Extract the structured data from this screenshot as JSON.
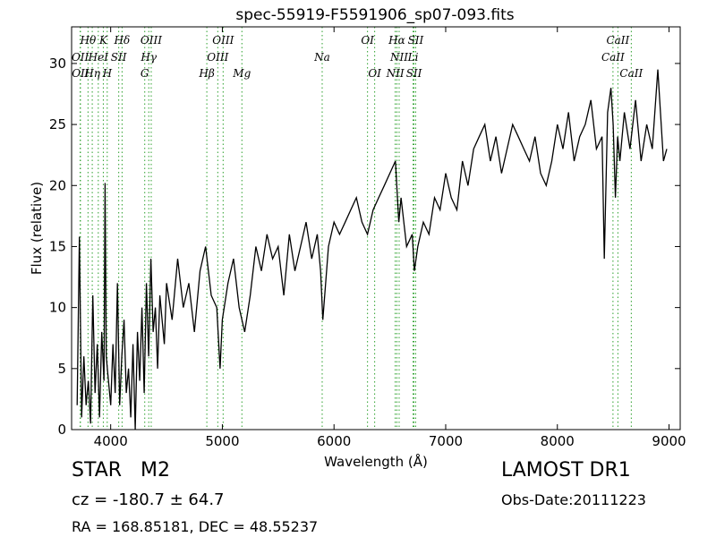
{
  "chart_data": {
    "type": "line",
    "title": "spec-55919-F5591906_sp07-093.fits",
    "xlabel": "Wavelength (Å)",
    "ylabel": "Flux (relative)",
    "xlim": [
      3650,
      9100
    ],
    "ylim": [
      0,
      33
    ],
    "xticks": [
      4000,
      5000,
      6000,
      7000,
      8000,
      9000
    ],
    "yticks": [
      0,
      5,
      10,
      15,
      20,
      25,
      30
    ],
    "grid": false,
    "line_color": "#000000",
    "marker_color": "#2ca02c",
    "series": [
      {
        "x": [
          3700,
          3720,
          3740,
          3760,
          3780,
          3800,
          3820,
          3840,
          3860,
          3880,
          3900,
          3920,
          3940,
          3950,
          3960,
          3980,
          4000,
          4020,
          4040,
          4060,
          4080,
          4100,
          4120,
          4140,
          4160,
          4180,
          4200,
          4220,
          4240,
          4260,
          4280,
          4300,
          4320,
          4340,
          4360,
          4380,
          4400,
          4420,
          4440,
          4460,
          4480,
          4500,
          4550,
          4600,
          4650,
          4700,
          4750,
          4800,
          4850,
          4900,
          4950,
          4980,
          5000,
          5050,
          5100,
          5150,
          5200,
          5250,
          5300,
          5350,
          5400,
          5450,
          5500,
          5550,
          5600,
          5650,
          5700,
          5750,
          5800,
          5850,
          5880,
          5900,
          5950,
          6000,
          6050,
          6100,
          6150,
          6200,
          6250,
          6300,
          6350,
          6400,
          6450,
          6500,
          6550,
          6580,
          6600,
          6650,
          6700,
          6720,
          6750,
          6800,
          6850,
          6900,
          6950,
          7000,
          7050,
          7100,
          7150,
          7200,
          7250,
          7300,
          7350,
          7400,
          7450,
          7500,
          7550,
          7600,
          7650,
          7700,
          7750,
          7800,
          7850,
          7900,
          7950,
          8000,
          8050,
          8100,
          8150,
          8200,
          8250,
          8300,
          8350,
          8400,
          8420,
          8450,
          8480,
          8500,
          8520,
          8540,
          8560,
          8600,
          8650,
          8700,
          8750,
          8800,
          8850,
          8900,
          8950,
          8980
        ],
        "y": [
          2,
          15.8,
          1,
          6,
          2,
          4,
          0.5,
          11,
          3,
          7,
          1,
          8,
          4,
          20.2,
          6,
          4,
          2,
          7,
          3,
          12,
          2,
          6,
          9,
          3,
          5,
          1,
          7,
          0,
          8,
          4,
          10,
          3,
          12,
          6,
          14,
          8,
          10,
          5,
          11,
          9,
          7,
          12,
          9,
          14,
          10,
          12,
          8,
          13,
          15,
          11,
          10,
          5,
          9,
          12,
          14,
          10,
          8,
          11,
          15,
          13,
          16,
          14,
          15,
          11,
          16,
          13,
          15,
          17,
          14,
          16,
          13,
          9,
          15,
          17,
          16,
          17,
          18,
          19,
          17,
          16,
          18,
          19,
          20,
          21,
          22,
          17,
          19,
          15,
          16,
          13,
          15,
          17,
          16,
          19,
          18,
          21,
          19,
          18,
          22,
          20,
          23,
          24,
          25,
          22,
          24,
          21,
          23,
          25,
          24,
          23,
          22,
          24,
          21,
          20,
          22,
          25,
          23,
          26,
          22,
          24,
          25,
          27,
          23,
          24,
          14,
          26,
          28,
          25,
          19,
          24,
          22,
          26,
          23,
          27,
          22,
          25,
          23,
          29.5,
          22,
          23
        ]
      }
    ],
    "spectral_lines": [
      {
        "name": "OII",
        "wavelength": 3727,
        "row": 2
      },
      {
        "name": "OII",
        "wavelength": 3729,
        "row": 3
      },
      {
        "name": "Hθ",
        "wavelength": 3797,
        "row": 1
      },
      {
        "name": "Hη",
        "wavelength": 3835,
        "row": 2.6
      },
      {
        "name": "HeI",
        "wavelength": 3889,
        "row": 2
      },
      {
        "name": "K",
        "wavelength": 3934,
        "row": 1
      },
      {
        "name": "H",
        "wavelength": 3969,
        "row": 3
      },
      {
        "name": "Hδ",
        "wavelength": 4102,
        "row": 1
      },
      {
        "name": "SII",
        "wavelength": 4072,
        "row": 2
      },
      {
        "name": "G",
        "wavelength": 4305,
        "row": 3
      },
      {
        "name": "Hγ",
        "wavelength": 4341,
        "row": 2
      },
      {
        "name": "OIII",
        "wavelength": 4363,
        "row": 1
      },
      {
        "name": "Hβ",
        "wavelength": 4861,
        "row": 3
      },
      {
        "name": "OIII",
        "wavelength": 4959,
        "row": 2
      },
      {
        "name": "OIII",
        "wavelength": 5007,
        "row": 1
      },
      {
        "name": "Mg",
        "wavelength": 5175,
        "row": 3
      },
      {
        "name": "Na",
        "wavelength": 5894,
        "row": 2
      },
      {
        "name": "OI",
        "wavelength": 6300,
        "row": 1
      },
      {
        "name": "OI",
        "wavelength": 6364,
        "row": 3
      },
      {
        "name": "NII",
        "wavelength": 6548,
        "row": 3
      },
      {
        "name": "Hα",
        "wavelength": 6563,
        "row": 1
      },
      {
        "name": "NII",
        "wavelength": 6583,
        "row": 2
      },
      {
        "name": "Li",
        "wavelength": 6708,
        "row": 2
      },
      {
        "name": "SII",
        "wavelength": 6716,
        "row": 3
      },
      {
        "name": "SII",
        "wavelength": 6731,
        "row": 1
      },
      {
        "name": "CaII",
        "wavelength": 8498,
        "row": 2
      },
      {
        "name": "CaII",
        "wavelength": 8542,
        "row": 1
      },
      {
        "name": "CaII",
        "wavelength": 8662,
        "row": 3
      }
    ]
  },
  "info": {
    "object_type": "STAR   M2",
    "survey": "LAMOST DR1",
    "cz": "cz = -180.7 ± 64.7",
    "obs_date": "Obs-Date:20111223",
    "radec": "RA = 168.85181, DEC = 48.55237"
  }
}
